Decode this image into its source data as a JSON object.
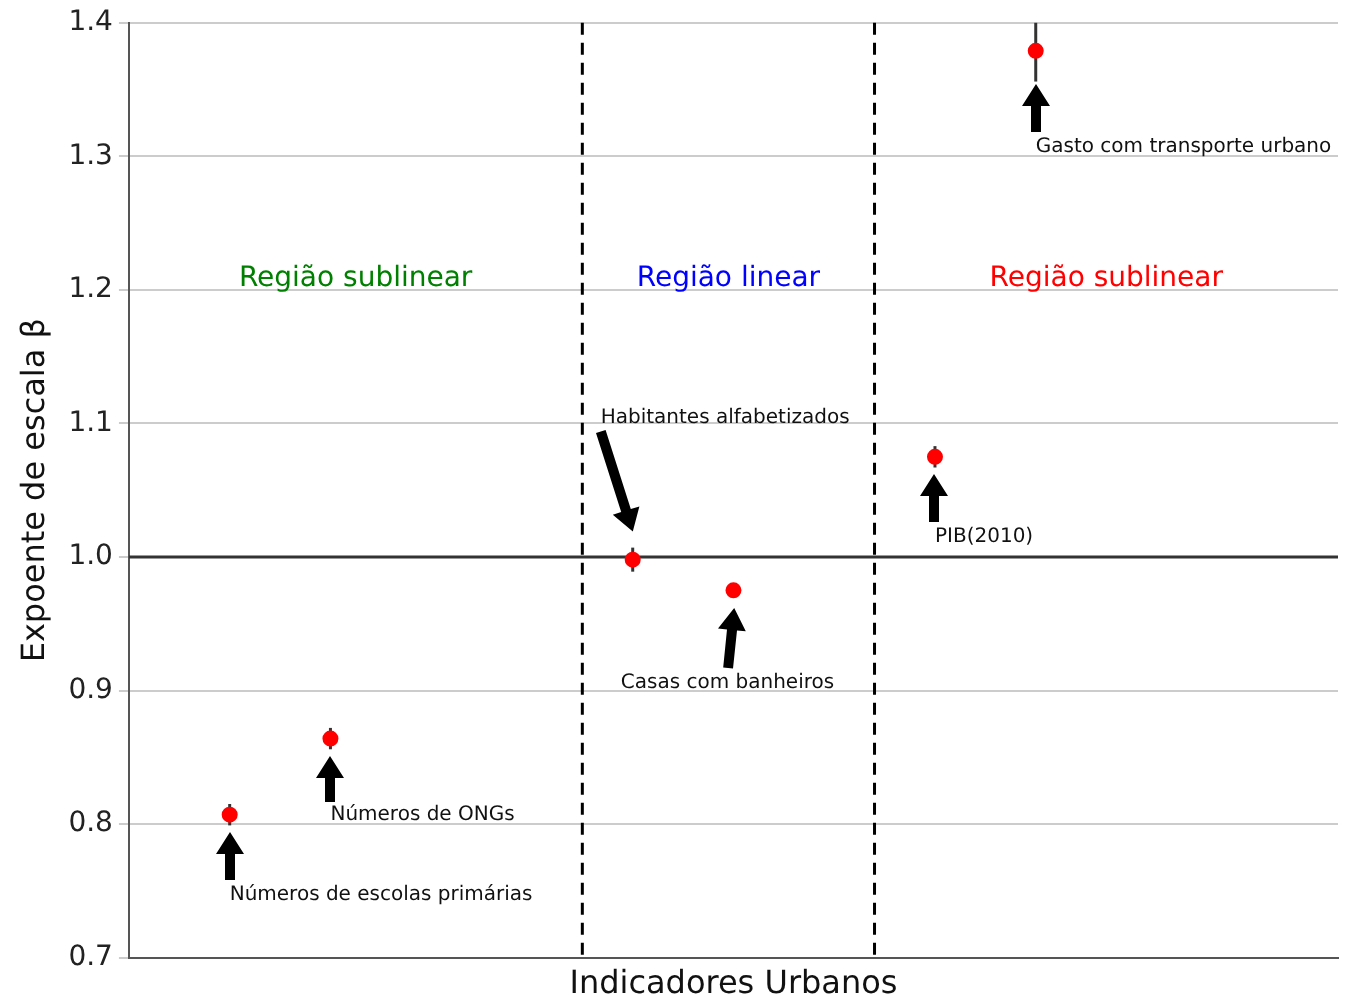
{
  "chart_data": {
    "type": "scatter",
    "xlabel": "Indicadores Urbanos",
    "ylabel": "Expoente de escala β",
    "categories": [
      null,
      null,
      null,
      null,
      null,
      null,
      null,
      null,
      null,
      null,
      null,
      null,
      null
    ],
    "series": [
      {
        "color": "#ff0000",
        "values": [
          null,
          0.807,
          0.864,
          null,
          null,
          0.998,
          0.975,
          null,
          1.075,
          1.379,
          null,
          null,
          null
        ],
        "errors": [
          null,
          [
            0.799,
            0.815
          ],
          [
            0.856,
            0.872
          ],
          null,
          null,
          [
            0.989,
            1.007
          ],
          null,
          null,
          [
            1.067,
            1.083
          ],
          [
            1.356,
            1.4
          ],
          null,
          null,
          null
        ]
      }
    ],
    "ylim": [
      0.7,
      1.4
    ],
    "yticks": [
      0.7,
      0.8,
      0.9,
      {
        "value": 1,
        "label": "1.0"
      },
      1.1,
      1.2,
      1.3,
      1.4
    ],
    "tick_labels": "y",
    "grid": "y",
    "marker": "circle",
    "legend": false,
    "ref_lines": [
      {
        "axis": "y",
        "value": 1,
        "color": "#333333",
        "line_style": "solid"
      }
    ],
    "annotations": [
      "Região sublinear",
      "Região linear",
      "Região sublinear",
      "Números de escolas primárias",
      "Números de ONGs",
      "Habitantes alfabetizados",
      "Casas com banheiros",
      "PIB(2010)",
      "Gasto com transporte urbano"
    ]
  }
}
